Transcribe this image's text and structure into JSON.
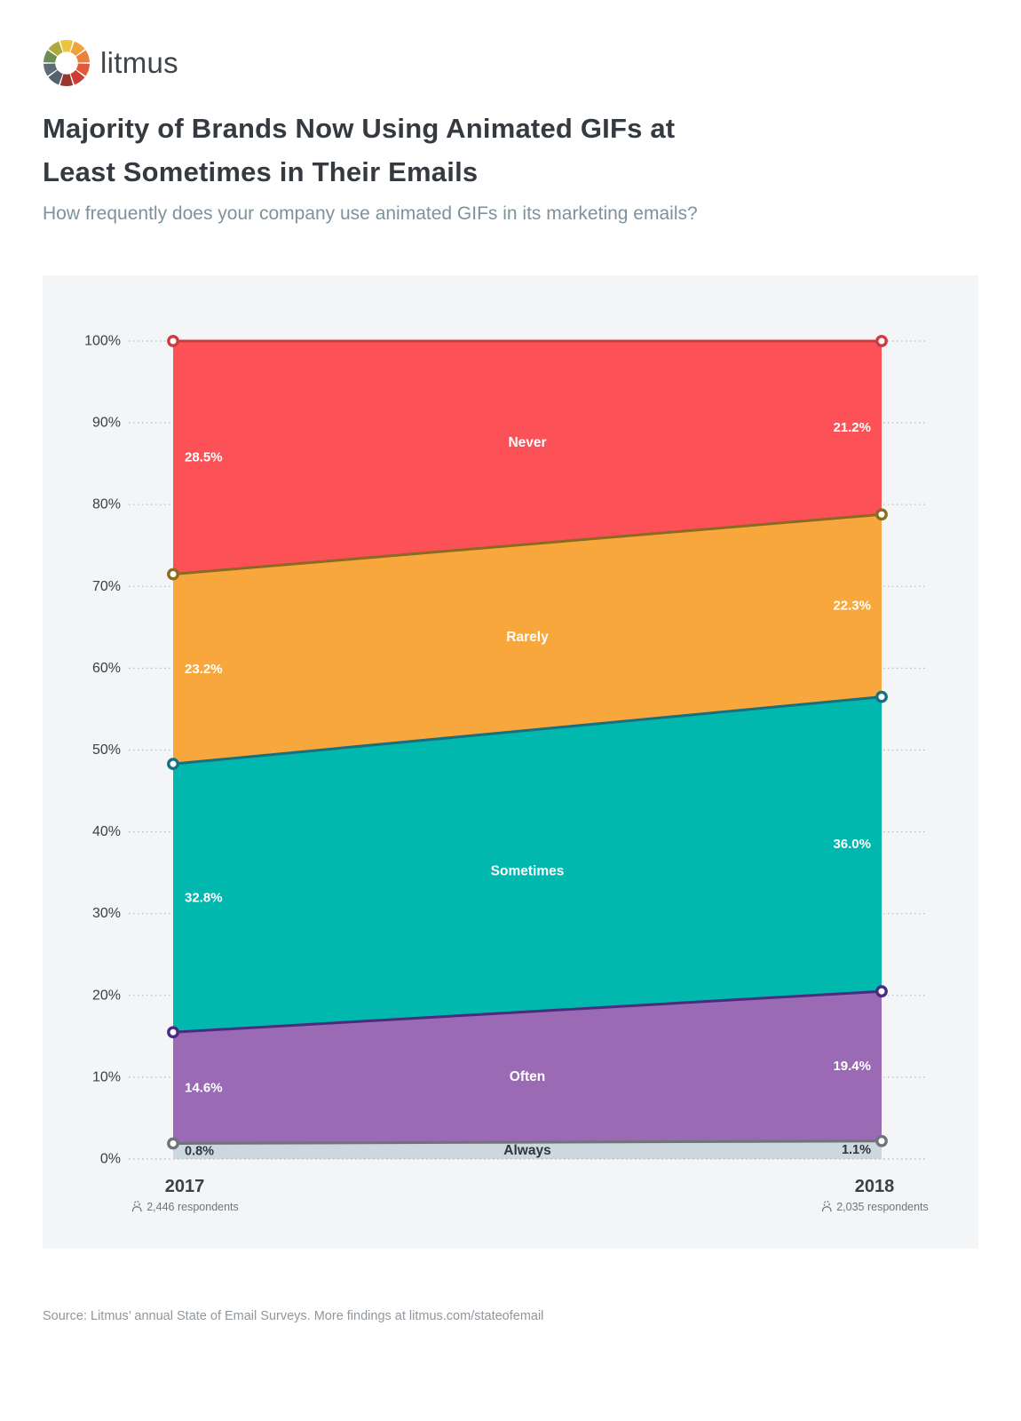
{
  "brand": {
    "name": "litmus",
    "logo_colors": [
      "#ECC43E",
      "#EFA33D",
      "#EE7F3A",
      "#E25A39",
      "#CC3E34",
      "#983530",
      "#54616C",
      "#5F6C75",
      "#6E8C53",
      "#B0A93B"
    ]
  },
  "header": {
    "title_line1": "Majority of Brands Now Using Animated GIFs at",
    "title_line2": "Least Sometimes in Their Emails",
    "subtitle": "How frequently does your company use animated GIFs in its marketing emails?"
  },
  "chart_data": {
    "type": "area",
    "stacked": true,
    "normalized_percent": true,
    "grid": "dotted",
    "ylim": [
      0,
      100
    ],
    "y_ticks": [
      "0%",
      "10%",
      "20%",
      "30%",
      "40%",
      "50%",
      "60%",
      "70%",
      "80%",
      "90%",
      "100%"
    ],
    "x_categories": [
      "2017",
      "2018"
    ],
    "x_meta": [
      "2,446 respondents",
      "2,035 respondents"
    ],
    "series": [
      {
        "name": "Never",
        "values": [
          28.5,
          21.2
        ],
        "fill": "#FB5157",
        "stroke": "#CE3A40",
        "label_color": "#FFFFFF"
      },
      {
        "name": "Rarely",
        "values": [
          23.2,
          22.3
        ],
        "fill": "#F7A73C",
        "stroke": "#8A6B1F",
        "label_color": "#FFFFFF"
      },
      {
        "name": "Sometimes",
        "values": [
          32.8,
          36.0
        ],
        "fill": "#00B8AE",
        "stroke": "#16707E",
        "label_color": "#FFFFFF"
      },
      {
        "name": "Often",
        "values": [
          14.6,
          19.4
        ],
        "fill": "#9B6AB4",
        "stroke": "#4A2B7E",
        "label_color": "#FFFFFF"
      },
      {
        "name": "Always",
        "values": [
          0.8,
          1.1
        ],
        "fill": "#CCD8DE",
        "stroke": "#6E7478",
        "label_color": "#2F353A"
      }
    ],
    "colors": {
      "panel_bg": "#F3F5F7",
      "grid": "#B7BCC1",
      "tick_label": "#3B4045",
      "year_label": "#3B4045",
      "respondents_label": "#6F757B"
    }
  },
  "footer": {
    "source": "Source: Litmus’ annual State of Email Surveys. More findings at litmus.com/stateofemail"
  }
}
